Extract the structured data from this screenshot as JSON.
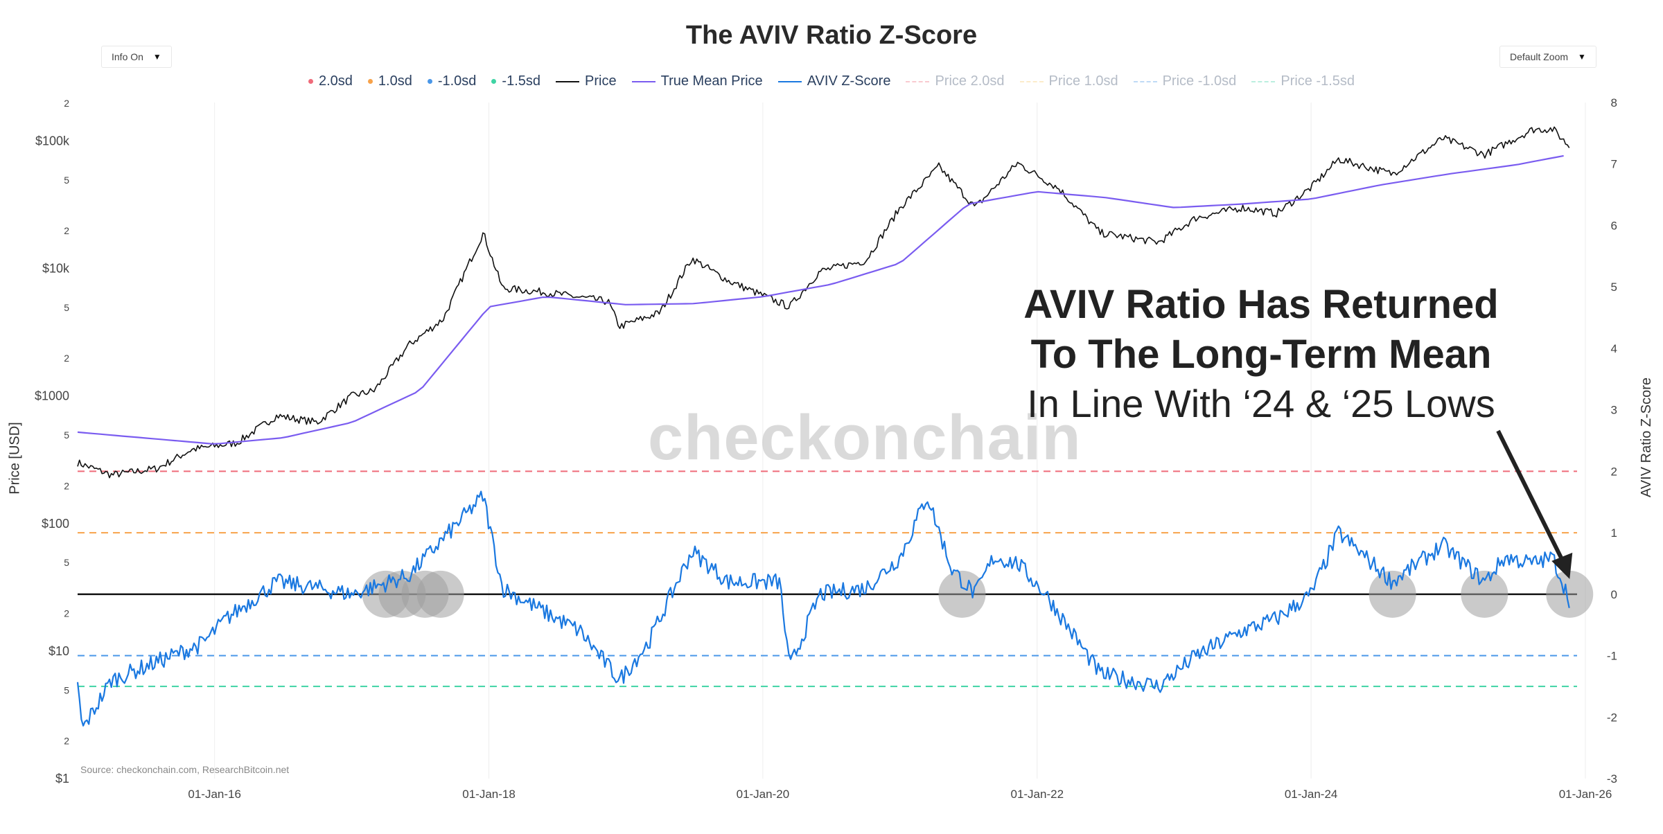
{
  "header": {
    "title": "The AVIV Ratio Z-Score",
    "info_dropdown": "Info On",
    "zoom_dropdown": "Default Zoom"
  },
  "legend": [
    {
      "label": "2.0sd",
      "kind": "dot",
      "color": "#ef6b7a",
      "faded": false
    },
    {
      "label": "1.0sd",
      "kind": "dot",
      "color": "#f7a24a",
      "faded": false
    },
    {
      "label": "-1.0sd",
      "kind": "dot",
      "color": "#4a97e8",
      "faded": false
    },
    {
      "label": "-1.5sd",
      "kind": "dot",
      "color": "#3fd4a4",
      "faded": false
    },
    {
      "label": "Price",
      "kind": "line",
      "color": "#111111",
      "faded": false
    },
    {
      "label": "True Mean Price",
      "kind": "line",
      "color": "#7a5cf0",
      "faded": false
    },
    {
      "label": "AVIV Z-Score",
      "kind": "line",
      "color": "#1a78e0",
      "faded": false
    },
    {
      "label": "Price 2.0sd",
      "kind": "dash",
      "color": "#ef6b7a",
      "faded": true
    },
    {
      "label": "Price 1.0sd",
      "kind": "dash",
      "color": "#f7c96a",
      "faded": true
    },
    {
      "label": "Price -1.0sd",
      "kind": "dash",
      "color": "#4a97e8",
      "faded": true
    },
    {
      "label": "Price -1.5sd",
      "kind": "dash",
      "color": "#3fd4a4",
      "faded": true
    }
  ],
  "annotation": {
    "line1": "AVIV Ratio Has Returned",
    "line2": "To The Long-Term Mean",
    "line3": "In Line With ‘24 & ‘25 Lows"
  },
  "watermark": "checkonchain",
  "source": "Source: checkonchain.com, ResearchBitcoin.net",
  "chart_data": {
    "type": "line",
    "x_axis": {
      "ticks": [
        "01-Jan-16",
        "01-Jan-18",
        "01-Jan-20",
        "01-Jan-22",
        "01-Jan-24",
        "01-Jan-26"
      ],
      "range": [
        "2015-01-01",
        "2026-01-01"
      ]
    },
    "y_left": {
      "title": "Price [USD]",
      "scale": "log",
      "range": [
        1,
        200000
      ],
      "ticks": [
        "$1",
        "2",
        "5",
        "$10",
        "2",
        "5",
        "$100",
        "2",
        "5",
        "$1000",
        "2",
        "5",
        "$10k",
        "2",
        "5",
        "$100k",
        "2"
      ]
    },
    "y_right": {
      "title": "AVIV Ratio Z-Score",
      "range": [
        -3,
        8
      ],
      "ticks": [
        "-3",
        "-2",
        "-1",
        "0",
        "1",
        "2",
        "3",
        "4",
        "5",
        "6",
        "7",
        "8"
      ]
    },
    "reference_lines_z": [
      {
        "name": "2.0sd",
        "value": 2,
        "color": "#ef6b7a"
      },
      {
        "name": "1.0sd",
        "value": 1,
        "color": "#f7a24a"
      },
      {
        "name": "0",
        "value": 0,
        "color": "#111111"
      },
      {
        "name": "-1.0sd",
        "value": -1,
        "color": "#4a97e8"
      },
      {
        "name": "-1.5sd",
        "value": -1.5,
        "color": "#3fd4a4"
      }
    ],
    "series": [
      {
        "name": "Price",
        "axis": "left",
        "color": "#111111",
        "x": [
          "2015-01-01",
          "2015-04-01",
          "2015-08-01",
          "2015-11-01",
          "2016-03-01",
          "2016-06-15",
          "2016-10-01",
          "2017-01-01",
          "2017-03-01",
          "2017-06-01",
          "2017-09-01",
          "2017-12-17",
          "2018-02-06",
          "2018-06-01",
          "2018-11-15",
          "2018-12-15",
          "2019-04-01",
          "2019-06-26",
          "2019-10-01",
          "2020-03-12",
          "2020-06-01",
          "2020-10-01",
          "2021-01-01",
          "2021-04-14",
          "2021-07-20",
          "2021-11-10",
          "2022-03-01",
          "2022-06-18",
          "2022-11-21",
          "2023-03-01",
          "2023-07-01",
          "2023-10-01",
          "2024-01-01",
          "2024-03-14",
          "2024-08-05",
          "2024-12-17",
          "2025-04-07",
          "2025-08-14",
          "2025-10-06",
          "2025-11-20"
        ],
        "values": [
          300,
          240,
          270,
          380,
          430,
          700,
          620,
          1000,
          1100,
          2500,
          4000,
          19000,
          7000,
          6500,
          5500,
          3500,
          4500,
          12000,
          8000,
          5000,
          9500,
          11500,
          30000,
          63000,
          30000,
          67000,
          42000,
          19000,
          16000,
          25000,
          30000,
          27000,
          43000,
          72000,
          55000,
          105000,
          78000,
          123000,
          124000,
          90000
        ]
      },
      {
        "name": "True Mean Price",
        "axis": "left",
        "color": "#7a5cf0",
        "x": [
          "2015-01-01",
          "2016-01-01",
          "2016-07-01",
          "2017-01-01",
          "2017-07-01",
          "2018-01-01",
          "2018-06-01",
          "2019-01-01",
          "2019-07-01",
          "2020-01-01",
          "2020-07-01",
          "2021-01-01",
          "2021-07-01",
          "2022-01-01",
          "2022-07-01",
          "2023-01-01",
          "2023-07-01",
          "2024-01-01",
          "2024-07-01",
          "2025-01-01",
          "2025-07-01",
          "2025-11-20"
        ],
        "values": [
          520,
          420,
          470,
          620,
          1100,
          5000,
          6000,
          5200,
          5300,
          6000,
          7500,
          11000,
          32000,
          40000,
          36000,
          30000,
          32000,
          35000,
          45000,
          55000,
          65000,
          78000
        ]
      },
      {
        "name": "AVIV Z-Score",
        "axis": "right",
        "color": "#1a78e0",
        "x": [
          "2015-01-01",
          "2015-01-14",
          "2015-04-01",
          "2015-08-01",
          "2015-12-01",
          "2016-02-01",
          "2016-06-15",
          "2016-10-01",
          "2017-01-01",
          "2017-06-01",
          "2017-09-01",
          "2017-12-17",
          "2018-02-06",
          "2018-06-01",
          "2018-09-01",
          "2018-12-15",
          "2019-03-01",
          "2019-06-26",
          "2019-10-01",
          "2020-02-15",
          "2020-03-12",
          "2020-06-01",
          "2020-10-01",
          "2021-01-01",
          "2021-03-14",
          "2021-05-19",
          "2021-07-20",
          "2021-09-07",
          "2021-11-10",
          "2022-01-24",
          "2022-06-18",
          "2022-11-21",
          "2023-03-01",
          "2023-07-01",
          "2023-10-01",
          "2024-01-01",
          "2024-03-14",
          "2024-08-05",
          "2024-12-17",
          "2025-04-07",
          "2025-06-01",
          "2025-08-14",
          "2025-10-06",
          "2025-11-20"
        ],
        "values": [
          -1.5,
          -2.2,
          -1.4,
          -1.1,
          -0.8,
          -0.4,
          0.2,
          0.1,
          0.0,
          0.3,
          0.9,
          1.6,
          0.1,
          -0.3,
          -0.6,
          -1.4,
          -0.8,
          0.7,
          0.2,
          0.2,
          -1.2,
          0.0,
          0.1,
          0.6,
          1.6,
          0.4,
          0.0,
          0.6,
          0.5,
          0.0,
          -1.3,
          -1.5,
          -1.0,
          -0.6,
          -0.4,
          0.0,
          1.0,
          0.2,
          0.8,
          0.2,
          0.6,
          0.5,
          0.6,
          -0.1
        ]
      }
    ],
    "highlight_circles": [
      "2017-04-01",
      "2017-05-15",
      "2017-07-15",
      "2017-08-25",
      "2021-06-15",
      "2024-08-05",
      "2025-04-07",
      "2025-11-20"
    ]
  }
}
